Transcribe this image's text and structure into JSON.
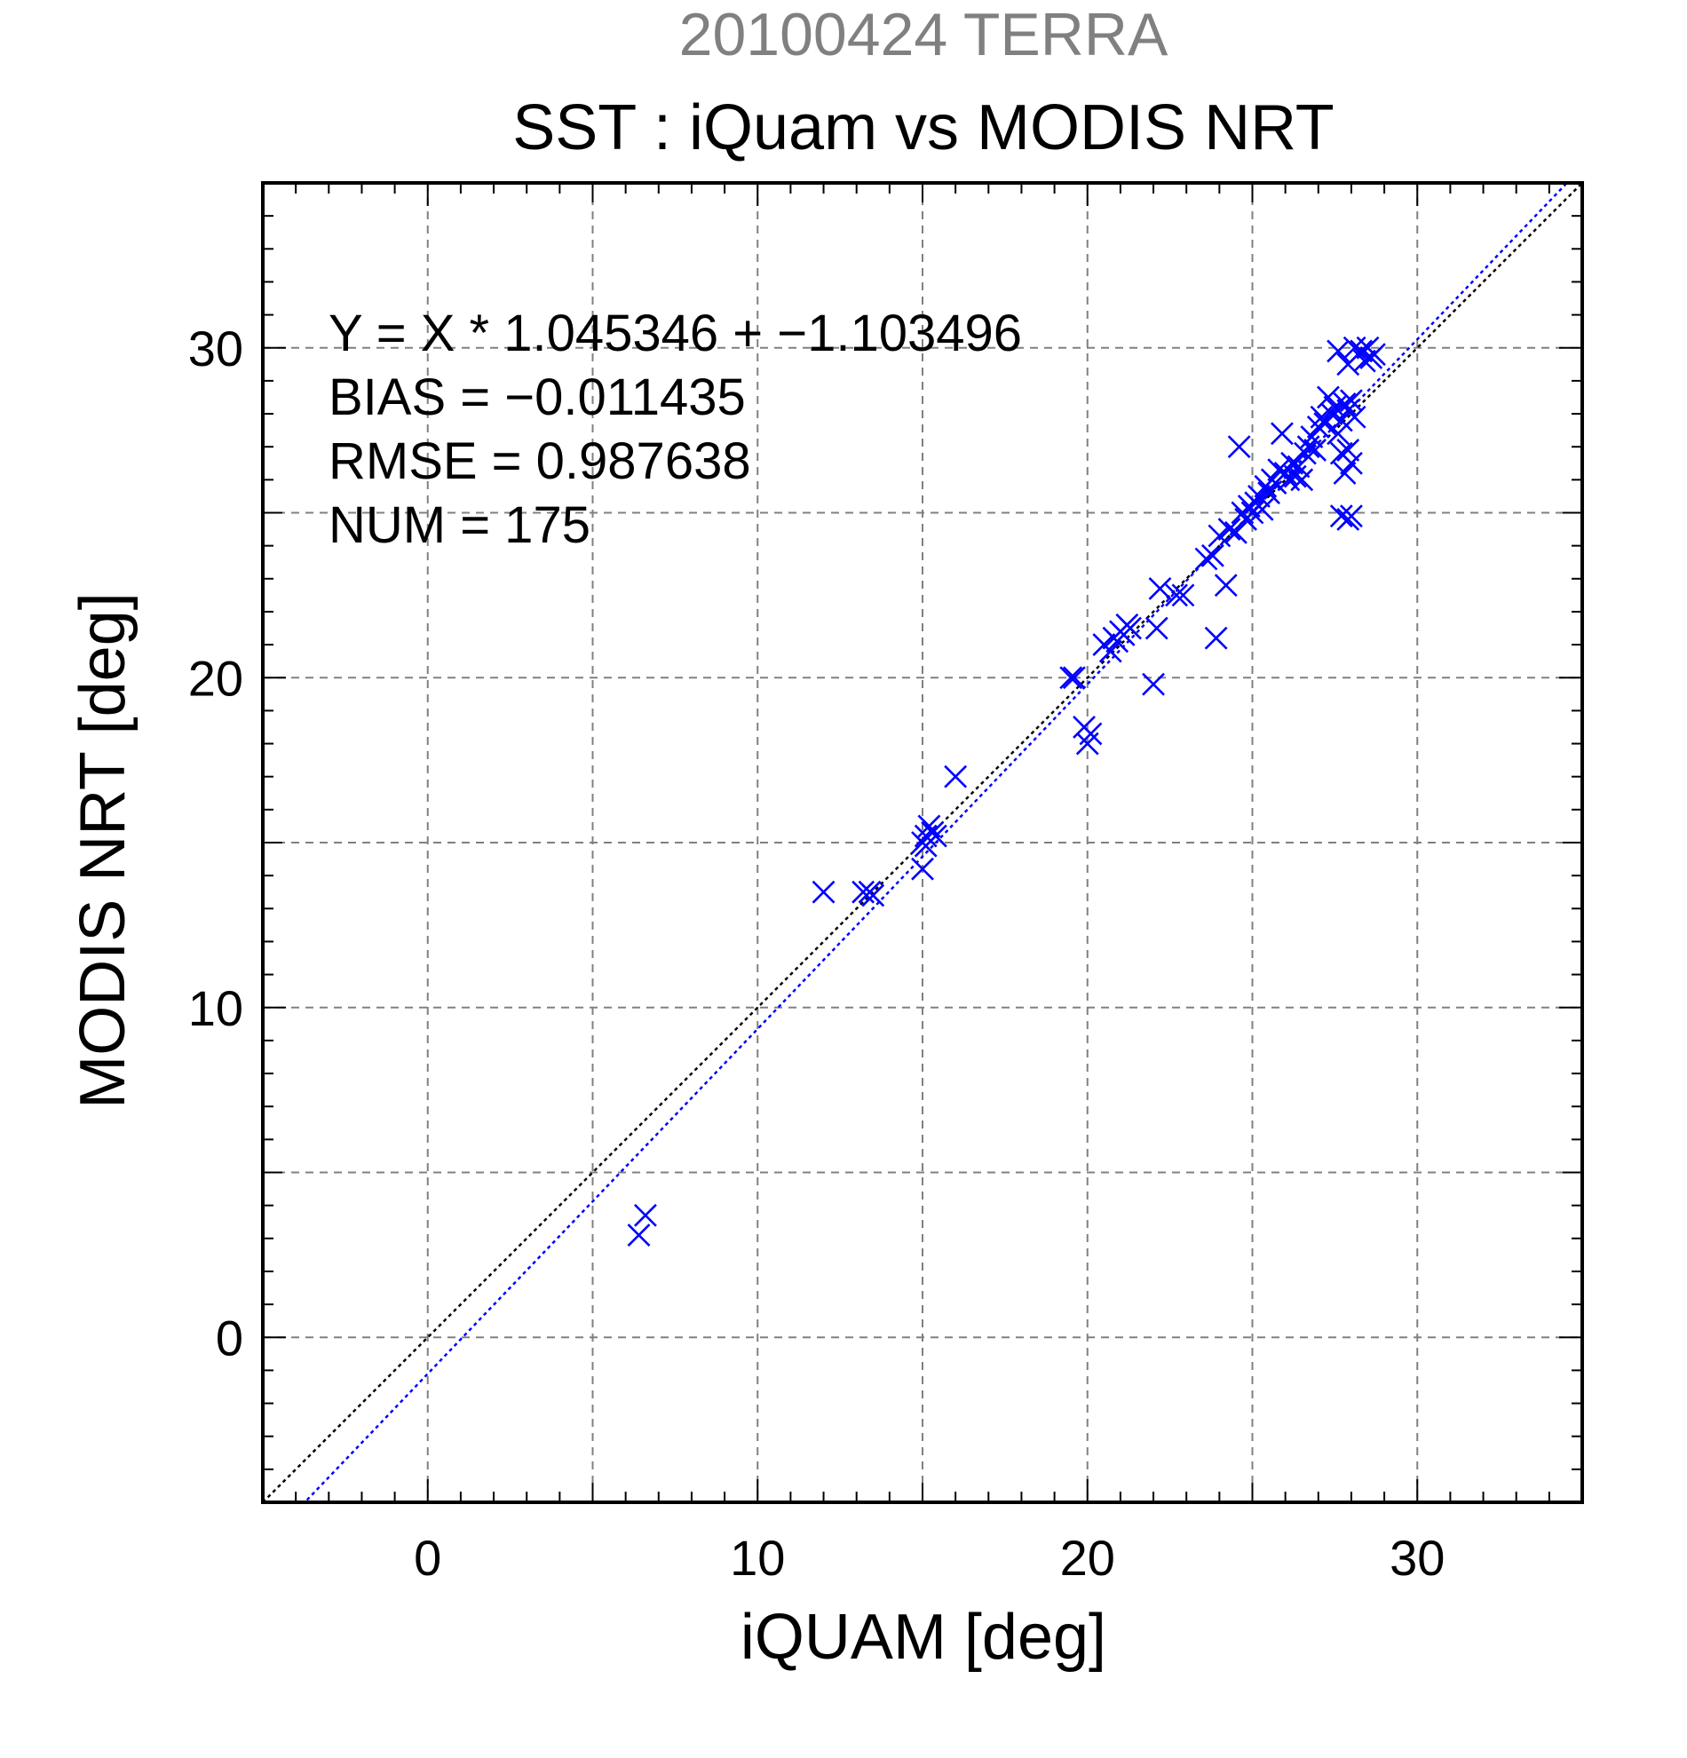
{
  "header": {
    "date_line": "20100424 TERRA",
    "title": "SST : iQuam vs MODIS NRT"
  },
  "colors": {
    "date_line": "#808080",
    "series": "#0000ff",
    "identity_line": "#000000",
    "regression_line": "#0000ff",
    "grid": "#808080",
    "axis": "#000000"
  },
  "chart_data": {
    "type": "scatter",
    "xlabel": "iQUAM [deg]",
    "ylabel": "MODIS NRT [deg]",
    "xlim": [
      -5,
      35
    ],
    "ylim": [
      -5,
      35
    ],
    "xticks": [
      0,
      10,
      20,
      30
    ],
    "yticks": [
      0,
      10,
      20,
      30
    ],
    "grid": true,
    "stats": [
      "Y = X * 1.045346 + −1.103496",
      "BIAS = −0.011435",
      "RMSE = 0.987638",
      "NUM = 175"
    ],
    "identity_line": {
      "slope": 1,
      "intercept": 0
    },
    "regression_line": {
      "slope": 1.045346,
      "intercept": -1.103496
    },
    "points": [
      [
        6.4,
        3.1
      ],
      [
        6.6,
        3.7
      ],
      [
        12.0,
        13.5
      ],
      [
        13.2,
        13.5
      ],
      [
        13.4,
        13.5
      ],
      [
        13.5,
        13.4
      ],
      [
        15.0,
        14.2
      ],
      [
        15.0,
        15.0
      ],
      [
        15.1,
        15.2
      ],
      [
        15.2,
        15.5
      ],
      [
        15.3,
        15.3
      ],
      [
        15.1,
        14.9
      ],
      [
        15.4,
        15.2
      ],
      [
        16.0,
        17.0
      ],
      [
        19.5,
        20.0
      ],
      [
        19.6,
        20.0
      ],
      [
        20.0,
        18.0
      ],
      [
        19.9,
        18.5
      ],
      [
        20.1,
        18.3
      ],
      [
        20.5,
        21.0
      ],
      [
        20.7,
        20.8
      ],
      [
        20.9,
        21.1
      ],
      [
        21.0,
        21.4
      ],
      [
        21.1,
        21.3
      ],
      [
        21.3,
        21.5
      ],
      [
        21.2,
        21.6
      ],
      [
        20.8,
        21.2
      ],
      [
        22.0,
        19.8
      ],
      [
        22.1,
        21.5
      ],
      [
        22.2,
        22.7
      ],
      [
        22.7,
        22.5
      ],
      [
        22.9,
        22.5
      ],
      [
        23.6,
        23.6
      ],
      [
        23.8,
        23.7
      ],
      [
        23.9,
        21.2
      ],
      [
        24.0,
        24.3
      ],
      [
        24.2,
        22.8
      ],
      [
        24.3,
        24.5
      ],
      [
        24.5,
        24.4
      ],
      [
        24.6,
        27.0
      ],
      [
        24.7,
        25.0
      ],
      [
        24.8,
        24.8
      ],
      [
        24.9,
        25.2
      ],
      [
        25.0,
        25.0
      ],
      [
        25.1,
        25.3
      ],
      [
        25.2,
        25.5
      ],
      [
        25.3,
        25.1
      ],
      [
        25.4,
        25.8
      ],
      [
        25.5,
        25.6
      ],
      [
        25.6,
        26.0
      ],
      [
        25.7,
        25.9
      ],
      [
        25.8,
        26.3
      ],
      [
        25.9,
        27.4
      ],
      [
        26.0,
        26.2
      ],
      [
        26.1,
        26.0
      ],
      [
        26.2,
        26.5
      ],
      [
        26.3,
        26.1
      ],
      [
        26.4,
        26.4
      ],
      [
        26.5,
        26.0
      ],
      [
        26.6,
        26.8
      ],
      [
        26.7,
        27.0
      ],
      [
        26.8,
        27.3
      ],
      [
        26.9,
        26.9
      ],
      [
        27.0,
        27.6
      ],
      [
        27.1,
        27.9
      ],
      [
        27.2,
        27.7
      ],
      [
        27.3,
        28.5
      ],
      [
        27.4,
        28.0
      ],
      [
        27.5,
        28.2
      ],
      [
        27.6,
        27.4
      ],
      [
        27.7,
        27.8
      ],
      [
        27.8,
        28.3
      ],
      [
        27.9,
        28.1
      ],
      [
        28.0,
        28.4
      ],
      [
        28.1,
        27.9
      ],
      [
        27.7,
        26.8
      ],
      [
        27.8,
        26.2
      ],
      [
        27.9,
        26.9
      ],
      [
        28.0,
        26.5
      ],
      [
        27.7,
        24.9
      ],
      [
        27.9,
        24.8
      ],
      [
        28.0,
        24.9
      ],
      [
        27.6,
        29.9
      ],
      [
        27.9,
        29.5
      ],
      [
        28.1,
        30.0
      ],
      [
        28.3,
        29.9
      ],
      [
        28.5,
        30.0
      ],
      [
        28.6,
        29.7
      ],
      [
        28.7,
        29.8
      ],
      [
        28.4,
        29.6
      ]
    ]
  }
}
